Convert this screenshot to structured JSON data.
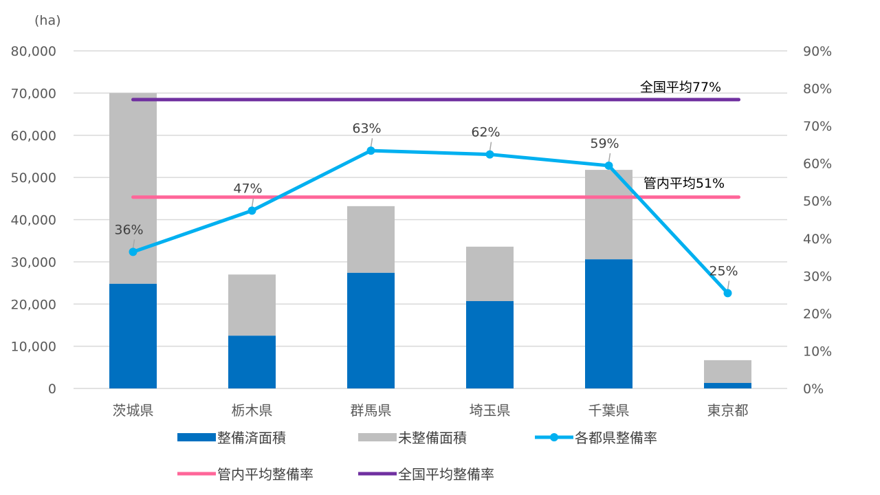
{
  "chart_data": {
    "type": "bar",
    "stacked": true,
    "categories": [
      "茨城県",
      "栃木県",
      "群馬県",
      "埼玉県",
      "千葉県",
      "東京都"
    ],
    "y_unit_label": "(ha)",
    "ylim": [
      0,
      80000
    ],
    "yticks": [
      "0",
      "10,000",
      "20,000",
      "30,000",
      "40,000",
      "50,000",
      "60,000",
      "70,000",
      "80,000"
    ],
    "y2lim": [
      0,
      90
    ],
    "y2ticks": [
      "0%",
      "10%",
      "20%",
      "30%",
      "40%",
      "50%",
      "60%",
      "70%",
      "80%",
      "90%"
    ],
    "grid": true,
    "legend_placement": "bottom",
    "series": [
      {
        "name": "整備済面積",
        "type": "bar",
        "color": "#0070C0",
        "values": [
          24800,
          12500,
          27400,
          20700,
          30600,
          1300
        ]
      },
      {
        "name": "未整備面積",
        "type": "bar",
        "color": "#BFBFBF",
        "values": [
          45200,
          14500,
          15800,
          12900,
          21200,
          5400
        ]
      },
      {
        "name": "各都県整備率",
        "type": "line",
        "axis": "right",
        "color": "#00B0F0",
        "values": [
          36,
          47,
          63,
          62,
          59,
          25
        ],
        "labels": [
          "36%",
          "47%",
          "63%",
          "62%",
          "59%",
          "25%"
        ]
      },
      {
        "name": "管内平均整備率",
        "type": "line",
        "axis": "right",
        "color": "#FF6699",
        "value": 51,
        "label": "管内平均51%"
      },
      {
        "name": "全国平均整備率",
        "type": "line",
        "axis": "right",
        "color": "#7030A0",
        "value": 77,
        "label": "全国平均77%"
      }
    ]
  }
}
